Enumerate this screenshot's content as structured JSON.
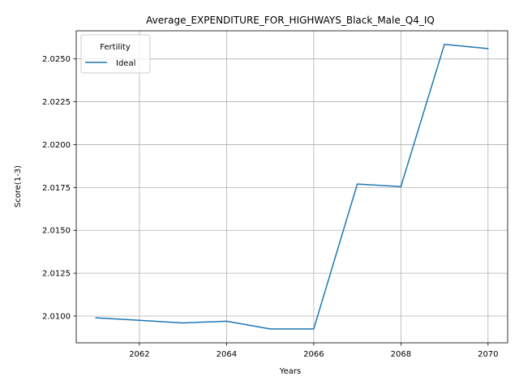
{
  "chart_data": {
    "type": "line",
    "title": "Average_EXPENDITURE_FOR_HIGHWAYS_Black_Male_Q4_IQ",
    "xlabel": "Years",
    "ylabel": "Score(1-3)",
    "x": [
      2061,
      2062,
      2063,
      2064,
      2065,
      2066,
      2067,
      2068,
      2069,
      2070
    ],
    "xticks": [
      "2062",
      "2064",
      "2066",
      "2068",
      "2070"
    ],
    "yticks": [
      "2.0100",
      "2.0125",
      "2.0150",
      "2.0175",
      "2.0200",
      "2.0225",
      "2.0250"
    ],
    "xlim": [
      2060.55,
      2070.45
    ],
    "ylim": [
      2.00844,
      2.02664
    ],
    "grid": true,
    "legend": {
      "title": "Fertility",
      "placement": "top-left"
    },
    "series": [
      {
        "name": "Ideal",
        "color": "#1f77b4",
        "values": [
          2.0099,
          2.00975,
          2.0096,
          2.0097,
          2.00925,
          2.00925,
          2.0177,
          2.01755,
          2.02585,
          2.0256
        ]
      }
    ]
  }
}
